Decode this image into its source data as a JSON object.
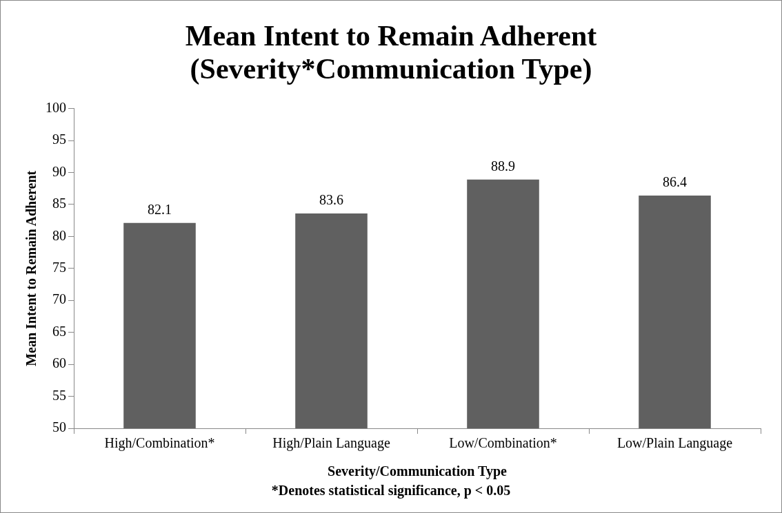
{
  "chart_data": {
    "type": "bar",
    "title": [
      "Mean Intent to Remain Adherent",
      "(Severity*Communication Type)"
    ],
    "xlabel": "Severity/Communication Type",
    "ylabel": "Mean Intent to Remain Adherent",
    "annotations": [
      "*Denotes statistical significance, p < 0.05"
    ],
    "categories": [
      "High/Combination*",
      "High/Plain Language",
      "Low/Combination*",
      "Low/Plain Language"
    ],
    "values": [
      82.1,
      83.6,
      88.9,
      86.4
    ],
    "color": "#606060",
    "ylim": [
      50,
      100
    ],
    "yticks": [
      50,
      55,
      60,
      65,
      70,
      75,
      80,
      85,
      90,
      95,
      100
    ],
    "data_labels": true,
    "grid": false,
    "legend": false
  }
}
